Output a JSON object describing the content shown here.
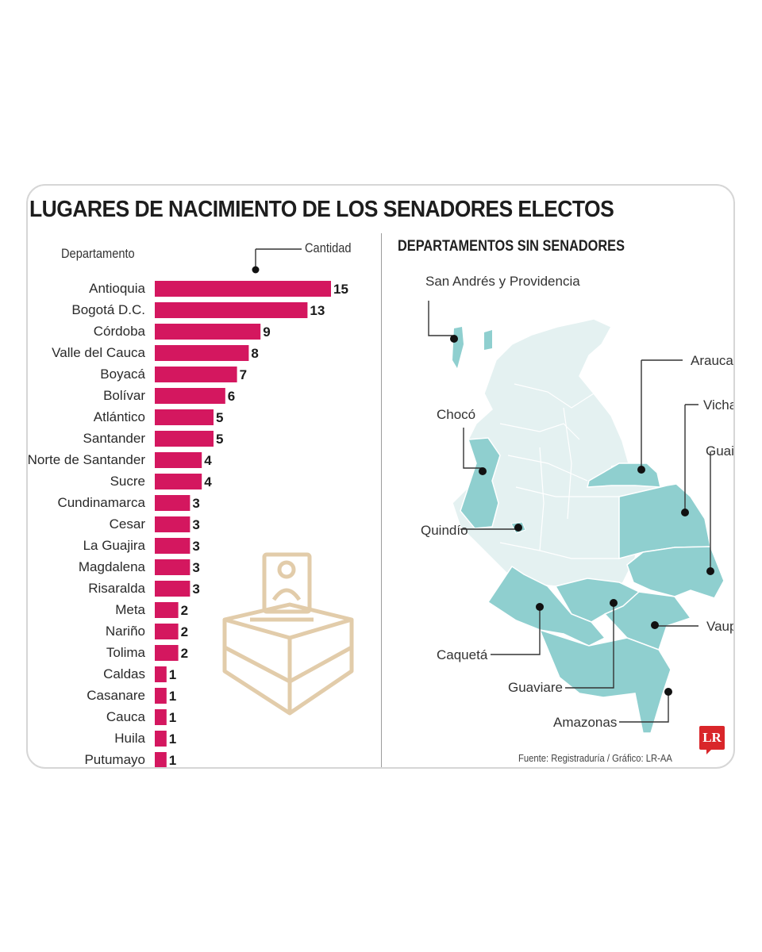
{
  "title": "LUGARES DE NACIMIENTO DE LOS SENADORES ELECTOS",
  "left_header": "Departamento",
  "right_header": "Cantidad",
  "map_title": "DEPARTAMENTOS SIN SENADORES",
  "source": "Fuente: Registraduría / Gráfico: LR-AA",
  "logo_text": "LR",
  "colors": {
    "bar": "#d4175f",
    "map_base": "#e4f1f1",
    "map_highlight": "#8fcfcf",
    "text": "#222222"
  },
  "icons": [
    "ballot-box-icon",
    "lr-logo"
  ],
  "chart_data": {
    "type": "bar",
    "orientation": "horizontal",
    "title": "LUGARES DE NACIMIENTO DE LOS SENADORES ELECTOS",
    "xlabel": "Cantidad",
    "ylabel": "Departamento",
    "categories": [
      "Antioquia",
      "Bogotá D.C.",
      "Córdoba",
      "Valle del Cauca",
      "Boyacá",
      "Bolívar",
      "Atlántico",
      "Santander",
      "Norte de Santander",
      "Sucre",
      "Cundinamarca",
      "Cesar",
      "La Guajira",
      "Magdalena",
      "Risaralda",
      "Meta",
      "Nariño",
      "Tolima",
      "Caldas",
      "Casanare",
      "Cauca",
      "Huila",
      "Putumayo"
    ],
    "values": [
      15,
      13,
      9,
      8,
      7,
      6,
      5,
      5,
      4,
      4,
      3,
      3,
      3,
      3,
      3,
      2,
      2,
      2,
      1,
      1,
      1,
      1,
      1
    ],
    "xlim": [
      0,
      15
    ],
    "grid": false,
    "legend": "none"
  },
  "map_labels": [
    "San Andrés y Providencia",
    "Arauca",
    "Vichada",
    "Chocó",
    "Guainía",
    "Quindío",
    "Vaupés",
    "Caquetá",
    "Guaviare",
    "Amazonas"
  ]
}
